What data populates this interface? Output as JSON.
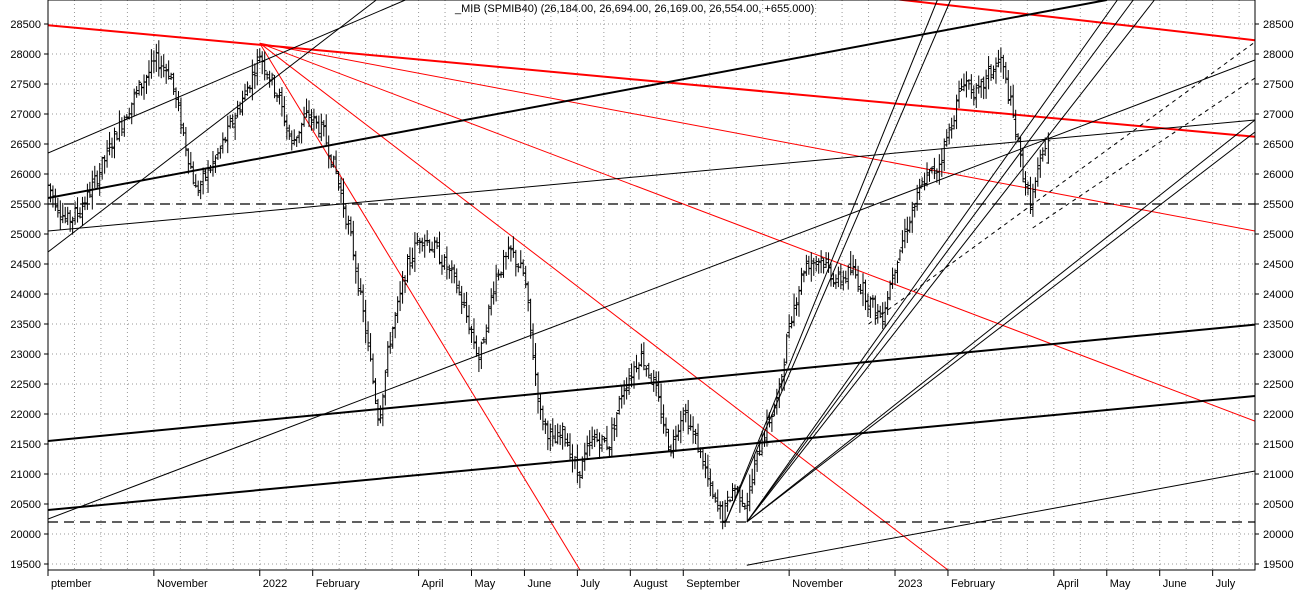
{
  "chart_data": {
    "type": "candlestick",
    "title": "_MIB (SPMIB40) (26,184.00, 26,694.00, 26,169.00, 26,554.00, +655.000)",
    "instrument": "_MIB (SPMIB40)",
    "last_bar": {
      "open": 26184.0,
      "high": 26694.0,
      "low": 26169.0,
      "close": 26554.0,
      "change": 655.0
    },
    "y_axis": {
      "range": [
        19400,
        28900
      ],
      "ticks": [
        19500,
        20000,
        20500,
        21000,
        21500,
        22000,
        22500,
        23000,
        23500,
        24000,
        24500,
        25000,
        25500,
        26000,
        26500,
        27000,
        27500,
        28000,
        28500
      ],
      "tick_labels": [
        "19500",
        "20000",
        "20500",
        "21000",
        "21500",
        "22000",
        "22500",
        "23000",
        "23500",
        "24000",
        "24500",
        "25000",
        "25500",
        "26000",
        "26500",
        "27000",
        "27500",
        "28000",
        "28500"
      ],
      "sides": "both",
      "grid": true
    },
    "x_axis": {
      "range_months": [
        0,
        22.8
      ],
      "labels": [
        {
          "month": 0.0,
          "label": "ptember"
        },
        {
          "month": 2.0,
          "label": "November"
        },
        {
          "month": 4.0,
          "label": "2022"
        },
        {
          "month": 5.0,
          "label": "February"
        },
        {
          "month": 7.0,
          "label": "April"
        },
        {
          "month": 8.0,
          "label": "May"
        },
        {
          "month": 9.0,
          "label": "June"
        },
        {
          "month": 10.0,
          "label": "July"
        },
        {
          "month": 11.0,
          "label": "August"
        },
        {
          "month": 12.0,
          "label": "September"
        },
        {
          "month": 14.0,
          "label": "November"
        },
        {
          "month": 16.0,
          "label": "2023"
        },
        {
          "month": 17.0,
          "label": "February"
        },
        {
          "month": 19.0,
          "label": "April"
        },
        {
          "month": 20.0,
          "label": "May"
        },
        {
          "month": 21.0,
          "label": "June"
        },
        {
          "month": 22.0,
          "label": "July"
        }
      ],
      "grid": true
    },
    "price_path": [
      [
        0.0,
        25800
      ],
      [
        0.35,
        25200
      ],
      [
        0.6,
        25400
      ],
      [
        0.9,
        25900
      ],
      [
        1.3,
        26700
      ],
      [
        1.7,
        27400
      ],
      [
        2.05,
        27900
      ],
      [
        2.3,
        27700
      ],
      [
        2.6,
        26500
      ],
      [
        2.8,
        25700
      ],
      [
        3.2,
        26300
      ],
      [
        3.5,
        26900
      ],
      [
        3.8,
        27500
      ],
      [
        4.0,
        28000
      ],
      [
        4.35,
        27300
      ],
      [
        4.6,
        26500
      ],
      [
        4.9,
        27000
      ],
      [
        5.2,
        26700
      ],
      [
        5.45,
        26000
      ],
      [
        5.75,
        24800
      ],
      [
        6.0,
        23400
      ],
      [
        6.25,
        21900
      ],
      [
        6.45,
        23200
      ],
      [
        6.8,
        24500
      ],
      [
        7.05,
        25000
      ],
      [
        7.35,
        24700
      ],
      [
        7.7,
        24200
      ],
      [
        7.95,
        23500
      ],
      [
        8.15,
        22900
      ],
      [
        8.45,
        24300
      ],
      [
        8.75,
        24700
      ],
      [
        9.0,
        24300
      ],
      [
        9.15,
        23100
      ],
      [
        9.3,
        22000
      ],
      [
        9.55,
        21500
      ],
      [
        9.75,
        21700
      ],
      [
        10.0,
        21000
      ],
      [
        10.3,
        21600
      ],
      [
        10.6,
        21500
      ],
      [
        10.85,
        22400
      ],
      [
        11.2,
        23000
      ],
      [
        11.45,
        22500
      ],
      [
        11.75,
        21400
      ],
      [
        12.0,
        22100
      ],
      [
        12.35,
        21300
      ],
      [
        12.55,
        20600
      ],
      [
        12.75,
        20300
      ],
      [
        12.95,
        20800
      ],
      [
        13.2,
        20500
      ],
      [
        13.45,
        21500
      ],
      [
        13.8,
        22300
      ],
      [
        14.0,
        23500
      ],
      [
        14.3,
        24500
      ],
      [
        14.6,
        24600
      ],
      [
        14.9,
        24200
      ],
      [
        15.2,
        24400
      ],
      [
        15.5,
        23900
      ],
      [
        15.75,
        23600
      ],
      [
        16.0,
        24500
      ],
      [
        16.25,
        25200
      ],
      [
        16.55,
        25900
      ],
      [
        16.8,
        26100
      ],
      [
        17.05,
        26800
      ],
      [
        17.3,
        27600
      ],
      [
        17.55,
        27300
      ],
      [
        17.8,
        27700
      ],
      [
        18.0,
        27900
      ],
      [
        18.2,
        27100
      ],
      [
        18.4,
        26100
      ],
      [
        18.55,
        25500
      ],
      [
        18.7,
        26000
      ],
      [
        18.85,
        26550
      ]
    ],
    "overlay_lines": [
      {
        "color": "#ff0000",
        "width": 2.0,
        "dash": "",
        "points": [
          [
            0.0,
            28480
          ],
          [
            22.8,
            26620
          ]
        ]
      },
      {
        "color": "#ff0000",
        "width": 2.0,
        "dash": "",
        "points": [
          [
            15.85,
            28930
          ],
          [
            22.8,
            28230
          ]
        ]
      },
      {
        "color": "#ff0000",
        "width": 1.0,
        "dash": "",
        "points": [
          [
            4.0,
            28180
          ],
          [
            22.8,
            25050
          ]
        ]
      },
      {
        "color": "#ff0000",
        "width": 1.0,
        "dash": "",
        "points": [
          [
            4.0,
            28180
          ],
          [
            22.8,
            21880
          ]
        ]
      },
      {
        "color": "#ff0000",
        "width": 1.0,
        "dash": "",
        "points": [
          [
            4.0,
            28180
          ],
          [
            17.0,
            19400
          ]
        ]
      },
      {
        "color": "#ff0000",
        "width": 1.0,
        "dash": "",
        "points": [
          [
            4.0,
            28180
          ],
          [
            10.05,
            19400
          ]
        ]
      },
      {
        "color": "#000000",
        "width": 2.0,
        "dash": "",
        "points": [
          [
            0.0,
            25600
          ],
          [
            20.0,
            28900
          ]
        ]
      },
      {
        "color": "#000000",
        "width": 2.0,
        "dash": "",
        "points": [
          [
            0.0,
            21550
          ],
          [
            22.8,
            23490
          ]
        ]
      },
      {
        "color": "#000000",
        "width": 2.0,
        "dash": "",
        "points": [
          [
            0.0,
            20400
          ],
          [
            22.8,
            22300
          ]
        ]
      },
      {
        "color": "#000000",
        "width": 1.0,
        "dash": "",
        "points": [
          [
            0.0,
            25050
          ],
          [
            22.8,
            26900
          ]
        ]
      },
      {
        "color": "#000000",
        "width": 1.0,
        "dash": "",
        "points": [
          [
            0.0,
            26350
          ],
          [
            6.75,
            28900
          ]
        ]
      },
      {
        "color": "#000000",
        "width": 1.0,
        "dash": "",
        "points": [
          [
            0.0,
            24700
          ],
          [
            6.2,
            28900
          ]
        ]
      },
      {
        "color": "#000000",
        "width": 1.0,
        "dash": "",
        "points": [
          [
            0.0,
            20250
          ],
          [
            22.8,
            27900
          ]
        ]
      },
      {
        "color": "#000000",
        "width": 1.0,
        "dash": "",
        "points": [
          [
            13.2,
            20200
          ],
          [
            22.8,
            26900
          ]
        ]
      },
      {
        "color": "#000000",
        "width": 1.0,
        "dash": "",
        "points": [
          [
            13.2,
            20200
          ],
          [
            22.8,
            26700
          ]
        ]
      },
      {
        "color": "#000000",
        "width": 1.0,
        "dash": "",
        "points": [
          [
            12.8,
            20200
          ],
          [
            16.8,
            28900
          ]
        ]
      },
      {
        "color": "#000000",
        "width": 1.0,
        "dash": "",
        "points": [
          [
            12.8,
            20200
          ],
          [
            17.05,
            28900
          ]
        ]
      },
      {
        "color": "#000000",
        "width": 1.0,
        "dash": "",
        "points": [
          [
            13.2,
            20200
          ],
          [
            20.2,
            28900
          ]
        ]
      },
      {
        "color": "#000000",
        "width": 1.0,
        "dash": "",
        "points": [
          [
            13.2,
            20200
          ],
          [
            20.5,
            28900
          ]
        ]
      },
      {
        "color": "#000000",
        "width": 1.0,
        "dash": "",
        "points": [
          [
            13.2,
            20200
          ],
          [
            20.9,
            28900
          ]
        ]
      },
      {
        "color": "#000000",
        "width": 1.0,
        "dash": "",
        "points": [
          [
            13.2,
            19480
          ],
          [
            22.8,
            21050
          ]
        ]
      },
      {
        "color": "#000000",
        "width": 1.0,
        "dash": "4,4",
        "points": [
          [
            15.5,
            23500
          ],
          [
            22.8,
            28200
          ]
        ]
      },
      {
        "color": "#000000",
        "width": 1.0,
        "dash": "4,4",
        "points": [
          [
            18.6,
            25100
          ],
          [
            22.8,
            27600
          ]
        ]
      },
      {
        "color": "#000000",
        "width": 1.2,
        "dash": "10,6",
        "points": [
          [
            0.0,
            25500
          ],
          [
            22.8,
            25500
          ]
        ]
      },
      {
        "color": "#000000",
        "width": 1.2,
        "dash": "10,6",
        "points": [
          [
            0.0,
            20200
          ],
          [
            22.8,
            20200
          ]
        ]
      }
    ]
  }
}
